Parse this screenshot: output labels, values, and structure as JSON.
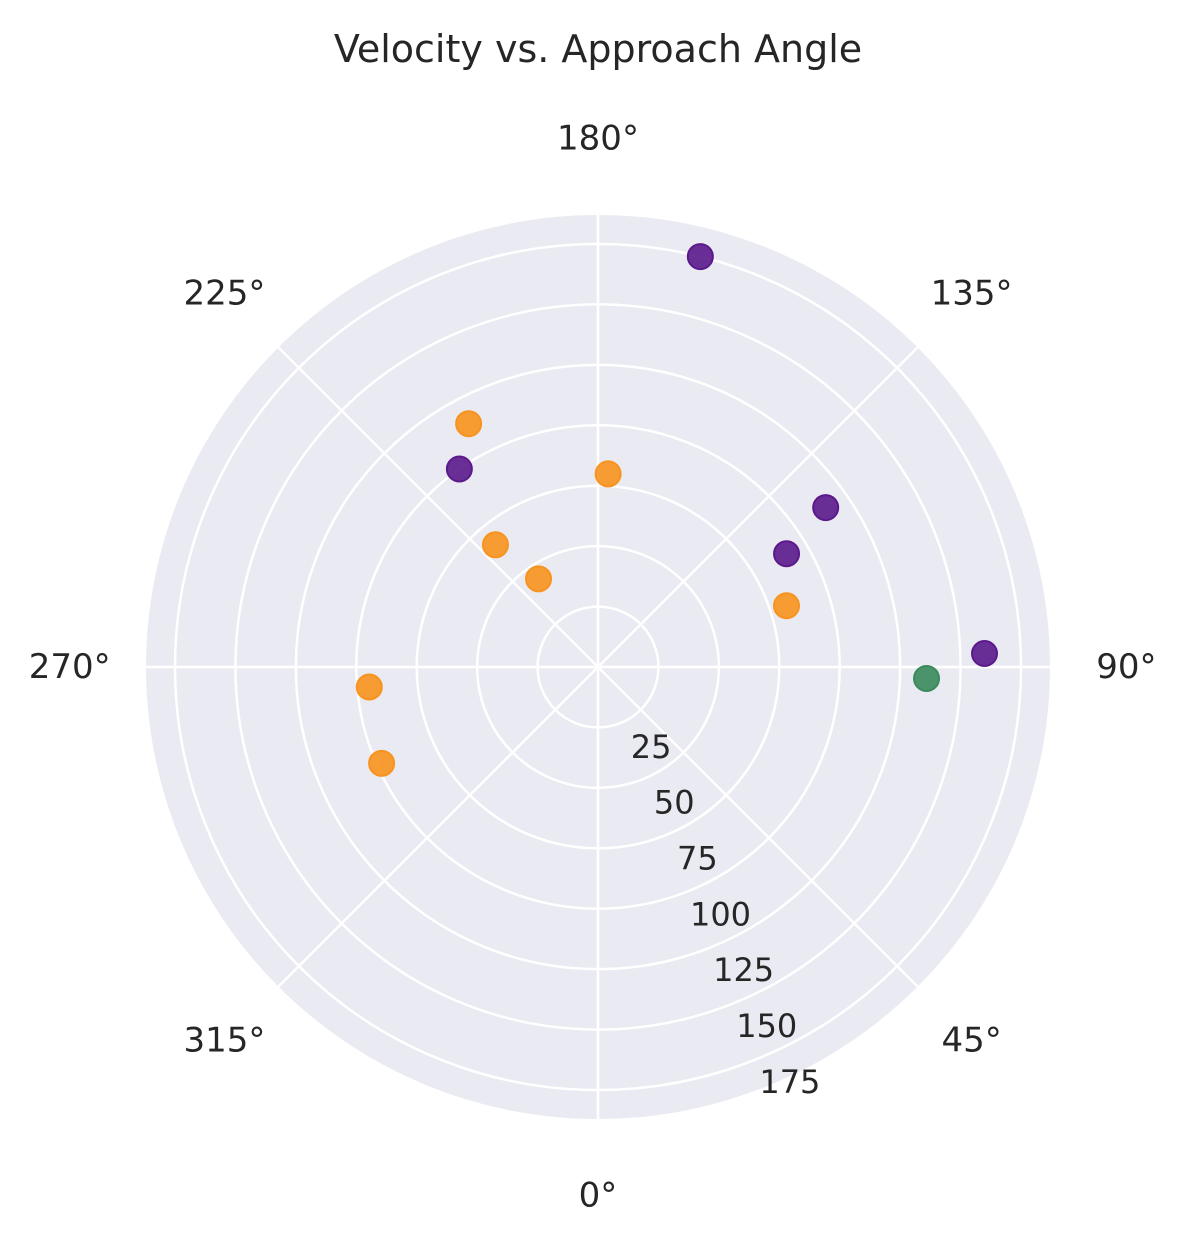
{
  "chart_data": {
    "type": "scatter",
    "projection": "polar",
    "title": "Velocity vs. Approach Angle",
    "theta_zero_location": "bottom",
    "theta_direction": "counterclockwise",
    "theta_ticks": [
      0,
      45,
      90,
      135,
      180,
      225,
      270,
      315
    ],
    "theta_tick_labels": [
      "0°",
      "45°",
      "90°",
      "135°",
      "180°",
      "225°",
      "270°",
      "315°"
    ],
    "r_ticks": [
      25,
      50,
      75,
      100,
      125,
      150,
      175
    ],
    "r_tick_labels": [
      "25",
      "50",
      "75",
      "100",
      "125",
      "150",
      "175"
    ],
    "r_label_angle_deg": 22.5,
    "rlim": [
      0,
      187
    ],
    "grid": true,
    "legend": "none",
    "background_color": "#eaeaf2",
    "grid_color": "#ffffff",
    "series": [
      {
        "color": "#5b1a8b",
        "points": [
          {
            "theta": 166,
            "r": 175
          },
          {
            "theta": 125,
            "r": 115
          },
          {
            "theta": 121,
            "r": 91
          },
          {
            "theta": 92,
            "r": 160
          },
          {
            "theta": 215,
            "r": 100
          }
        ]
      },
      {
        "color": "#f7931e",
        "points": [
          {
            "theta": 208,
            "r": 114
          },
          {
            "theta": 177,
            "r": 80
          },
          {
            "theta": 220,
            "r": 66
          },
          {
            "theta": 214,
            "r": 44
          },
          {
            "theta": 108,
            "r": 82
          },
          {
            "theta": 275,
            "r": 95
          },
          {
            "theta": 294,
            "r": 98
          }
        ]
      },
      {
        "color": "#3a8a5c",
        "points": [
          {
            "theta": 88,
            "r": 136
          }
        ]
      }
    ]
  }
}
